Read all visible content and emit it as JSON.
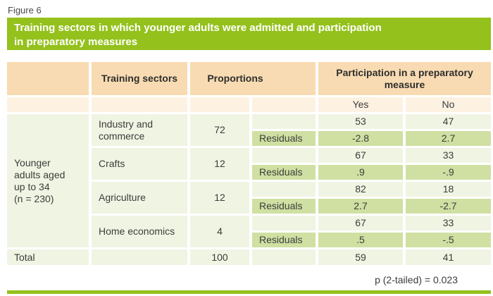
{
  "figure_label": "Figure 6",
  "title": "Training sectors in which younger adults were admitted and participation\nin preparatory measures",
  "colors": {
    "accent_green": "#94c11c",
    "header_peach": "#f8dbb2",
    "subheader_peach": "#fdf2e2",
    "body_pale_green": "#f0f4e3",
    "residual_green": "#cfe0a2",
    "text": "#3c3c3b",
    "title_text": "#ffffff"
  },
  "table": {
    "headers": {
      "training_sectors": "Training sectors",
      "proportions": "Proportions",
      "participation": "Participation in a preparatory\nmeasure",
      "yes": "Yes",
      "no": "No"
    },
    "row_group_label": "Younger\nadults aged\nup to 34\n(n = 230)",
    "sectors": [
      {
        "name": "Industry and commerce",
        "proportion": "72",
        "yes": "53",
        "no": "47",
        "residuals_label": "Residuals",
        "residual_yes": "-2.8",
        "residual_no": "2.7"
      },
      {
        "name": "Crafts",
        "proportion": "12",
        "yes": "67",
        "no": "33",
        "residuals_label": "Residuals",
        "residual_yes": ".9",
        "residual_no": "-.9"
      },
      {
        "name": "Agriculture",
        "proportion": "12",
        "yes": "82",
        "no": "18",
        "residuals_label": "Residuals",
        "residual_yes": "2.7",
        "residual_no": "-2.7"
      },
      {
        "name": "Home economics",
        "proportion": "4",
        "yes": "67",
        "no": "33",
        "residuals_label": "Residuals",
        "residual_yes": ".5",
        "residual_no": "-.5"
      }
    ],
    "total": {
      "label": "Total",
      "proportion": "100",
      "yes": "59",
      "no": "41"
    }
  },
  "footnote": "p (2-tailed) = 0.023",
  "chart_data": {
    "type": "table",
    "title": "Training sectors in which younger adults were admitted and participation in preparatory measures",
    "group": "Younger adults aged up to 34 (n = 230)",
    "columns": [
      "Training sectors",
      "Proportions",
      "Participation Yes",
      "Participation No",
      "Residuals Yes",
      "Residuals No"
    ],
    "rows": [
      [
        "Industry and commerce",
        72,
        53,
        47,
        -2.8,
        2.7
      ],
      [
        "Crafts",
        12,
        67,
        33,
        0.9,
        -0.9
      ],
      [
        "Agriculture",
        12,
        82,
        18,
        2.7,
        -2.7
      ],
      [
        "Home economics",
        4,
        67,
        33,
        0.5,
        -0.5
      ],
      [
        "Total",
        100,
        59,
        41,
        null,
        null
      ]
    ],
    "note": "p (2-tailed) = 0.023"
  }
}
